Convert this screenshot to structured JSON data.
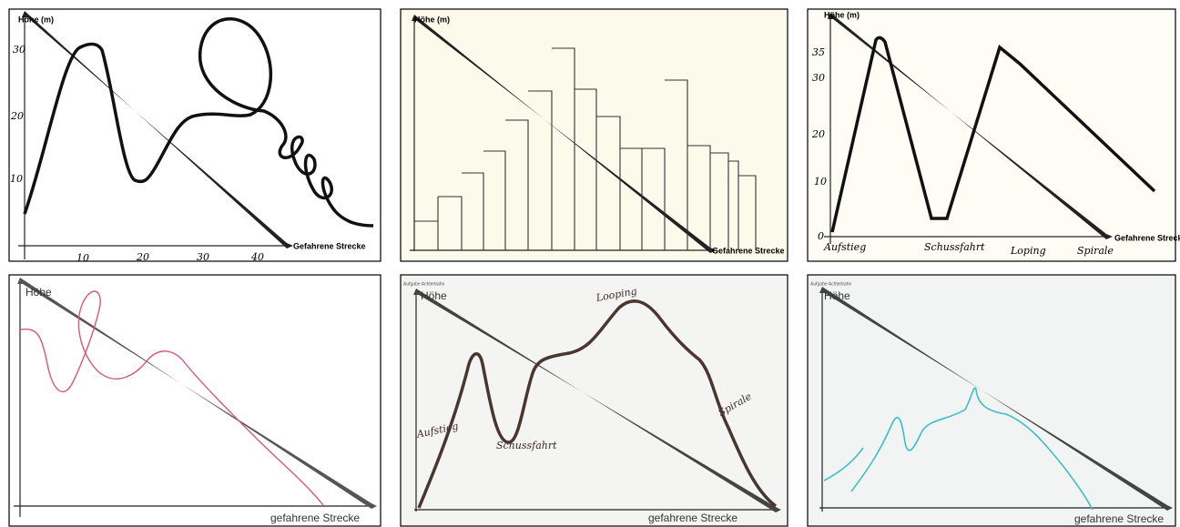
{
  "panels": [
    {
      "y_label": "Höhe (m)",
      "x_label": "Gefahrene Strecke",
      "y_ticks": [
        "30",
        "20",
        "10"
      ],
      "x_ticks": [
        "10",
        "20",
        "30",
        "40"
      ]
    },
    {
      "y_label": "Höhe (m)",
      "x_label": "Gefahrene Strecke"
    },
    {
      "y_label": "Höhe (m)",
      "x_label": "Gefahrene Strecke",
      "y_ticks": [
        "35",
        "30",
        "20",
        "10",
        "0"
      ],
      "x_ticks": [
        "Aufstieg",
        "Schussfahrt",
        "Loping",
        "Spirale"
      ]
    },
    {
      "y_label": "Höhe",
      "x_label": "gefahrene Strecke"
    },
    {
      "caption": "Aufgabe Achterbahn",
      "y_label": "Höhe",
      "x_label": "gefahrene Strecke",
      "annotations": [
        "Aufstieg",
        "Schussfahrt",
        "Looping",
        "Spirale"
      ]
    },
    {
      "caption": "Aufgabe Achterbahn",
      "y_label": "Höhe",
      "x_label": "gefahrene Strecke"
    }
  ]
}
